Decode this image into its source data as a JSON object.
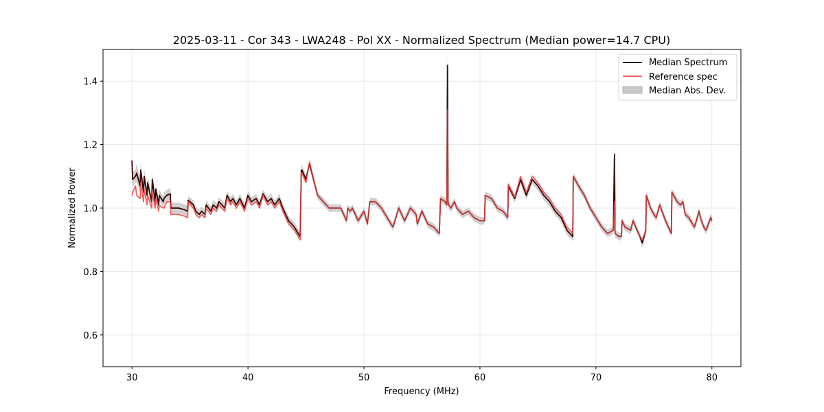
{
  "chart_data": {
    "type": "line",
    "title": "2025-03-11 - Cor 343 - LWA248 - Pol XX - Normalized Spectrum (Median power=14.7 CPU)",
    "xlabel": "Frequency (MHz)",
    "ylabel": "Normalized Power",
    "xlim": [
      27.5,
      82.5
    ],
    "ylim": [
      0.5,
      1.5
    ],
    "xticks": [
      30,
      40,
      50,
      60,
      70,
      80
    ],
    "yticks": [
      0.6,
      0.8,
      1.0,
      1.2,
      1.4
    ],
    "xtick_labels": [
      "30",
      "40",
      "50",
      "60",
      "70",
      "80"
    ],
    "ytick_labels": [
      "0.6",
      "0.8",
      "1.0",
      "1.2",
      "1.4"
    ],
    "grid": true,
    "legend_position": "top-right",
    "colors": {
      "median": "#000000",
      "reference": "#f06060",
      "mad": "#c8c8c8",
      "overlap": "#8b0000"
    },
    "legend": [
      {
        "label": "Median Spectrum",
        "kind": "line",
        "color": "#000000"
      },
      {
        "label": "Reference spec",
        "kind": "line",
        "color": "#f06060"
      },
      {
        "label": "Median Abs. Dev.",
        "kind": "patch",
        "color": "#c8c8c8"
      }
    ],
    "series": [
      {
        "name": "Median Spectrum",
        "x": [
          30.0,
          30.05,
          30.3,
          30.4,
          30.7,
          30.75,
          31.0,
          31.05,
          31.3,
          31.35,
          31.7,
          31.75,
          32.0,
          32.05,
          32.3,
          32.35,
          32.7,
          32.75,
          33.0,
          33.3,
          33.35,
          34.0,
          34.5,
          34.8,
          34.85,
          35.3,
          35.5,
          35.8,
          36.0,
          36.3,
          36.4,
          36.8,
          37.0,
          37.3,
          37.5,
          38.0,
          38.2,
          38.5,
          38.7,
          39.0,
          39.3,
          39.7,
          40.0,
          40.3,
          40.7,
          41.0,
          41.3,
          41.7,
          42.0,
          42.3,
          42.7,
          43.0,
          43.5,
          44.0,
          44.5,
          44.6,
          44.65,
          45.0,
          45.3,
          46.0,
          46.5,
          47.0,
          47.5,
          48.0,
          48.5,
          48.6,
          48.8,
          49.0,
          49.5,
          50.0,
          50.3,
          50.5,
          51.0,
          51.5,
          52.0,
          52.5,
          53.0,
          53.5,
          54.0,
          54.5,
          54.6,
          55.0,
          55.5,
          56.0,
          56.5,
          56.6,
          57.0,
          57.15,
          57.2,
          57.25,
          57.3,
          57.5,
          57.8,
          58.0,
          58.5,
          59.0,
          59.5,
          60.0,
          60.4,
          60.45,
          61.0,
          61.5,
          62.0,
          62.4,
          62.45,
          63.0,
          63.5,
          64.0,
          64.5,
          65.0,
          65.5,
          66.0,
          66.5,
          67.0,
          67.5,
          68.0,
          68.05,
          68.5,
          69.0,
          69.5,
          70.0,
          70.5,
          71.0,
          71.5,
          71.6,
          71.65,
          72.0,
          72.2,
          72.25,
          72.5,
          73.0,
          73.2,
          73.8,
          74.0,
          74.3,
          74.35,
          74.7,
          75.0,
          75.2,
          75.5,
          76.0,
          76.5,
          76.55,
          77.0,
          77.3,
          77.5,
          77.7,
          78.0,
          78.5,
          78.9,
          79.0,
          79.3,
          79.5,
          79.9,
          80.0
        ],
        "values": [
          1.15,
          1.09,
          1.1,
          1.11,
          1.07,
          1.12,
          1.05,
          1.1,
          1.04,
          1.08,
          1.02,
          1.09,
          1.02,
          1.06,
          1.01,
          1.04,
          1.02,
          1.03,
          1.04,
          1.045,
          1.0,
          1.0,
          0.995,
          0.99,
          1.025,
          1.01,
          0.99,
          0.98,
          0.99,
          0.98,
          1.01,
          0.99,
          1.01,
          1.0,
          1.02,
          1.0,
          1.04,
          1.02,
          1.03,
          1.01,
          1.03,
          1.0,
          1.04,
          1.02,
          1.03,
          1.01,
          1.045,
          1.02,
          1.03,
          1.01,
          1.03,
          1.0,
          0.96,
          0.94,
          0.91,
          1.12,
          1.12,
          1.09,
          1.14,
          1.04,
          1.02,
          1.0,
          1.0,
          1.0,
          0.96,
          1.0,
          0.99,
          1.0,
          0.96,
          0.99,
          0.95,
          1.02,
          1.02,
          1.0,
          0.97,
          0.94,
          1.0,
          0.96,
          1.0,
          0.98,
          0.95,
          0.99,
          0.95,
          0.94,
          0.92,
          1.03,
          1.02,
          1.01,
          1.45,
          1.02,
          1.01,
          1.0,
          1.02,
          1.0,
          0.98,
          0.99,
          0.97,
          0.96,
          0.96,
          1.04,
          1.03,
          1.0,
          0.99,
          0.97,
          1.07,
          1.03,
          1.09,
          1.04,
          1.09,
          1.07,
          1.04,
          1.02,
          0.99,
          0.97,
          0.93,
          0.91,
          1.1,
          1.07,
          1.04,
          1.0,
          0.97,
          0.94,
          0.92,
          0.93,
          1.17,
          0.92,
          0.91,
          0.91,
          0.96,
          0.94,
          0.93,
          0.96,
          0.91,
          0.89,
          0.93,
          1.04,
          1.0,
          0.98,
          0.97,
          1.01,
          0.96,
          0.92,
          1.05,
          1.02,
          1.01,
          1.02,
          0.98,
          0.97,
          0.94,
          0.99,
          0.97,
          0.94,
          0.93,
          0.97,
          0.96
        ]
      },
      {
        "name": "Reference spec",
        "x": [
          30.0,
          30.05,
          30.3,
          30.4,
          30.7,
          30.75,
          31.0,
          31.05,
          31.3,
          31.35,
          31.7,
          31.75,
          32.0,
          32.05,
          32.3,
          32.35,
          32.7,
          32.75,
          33.0,
          33.3,
          33.35,
          34.0,
          34.5,
          34.8,
          34.85,
          35.3,
          35.5,
          35.8,
          36.0,
          36.3,
          36.4,
          36.8,
          37.0,
          37.3,
          37.5,
          38.0,
          38.2,
          38.5,
          38.7,
          39.0,
          39.3,
          39.7,
          40.0,
          40.3,
          40.7,
          41.0,
          41.3,
          41.7,
          42.0,
          42.3,
          42.7,
          43.0,
          43.5,
          44.0,
          44.5,
          44.6,
          44.65,
          45.0,
          45.3,
          46.0,
          46.5,
          47.0,
          47.5,
          48.0,
          48.5,
          48.6,
          48.8,
          49.0,
          49.5,
          50.0,
          50.3,
          50.5,
          51.0,
          51.5,
          52.0,
          52.5,
          53.0,
          53.5,
          54.0,
          54.5,
          54.6,
          55.0,
          55.5,
          56.0,
          56.5,
          56.6,
          57.0,
          57.15,
          57.2,
          57.25,
          57.3,
          57.5,
          57.8,
          58.0,
          58.5,
          59.0,
          59.5,
          60.0,
          60.4,
          60.45,
          61.0,
          61.5,
          62.0,
          62.4,
          62.45,
          63.0,
          63.5,
          64.0,
          64.5,
          65.0,
          65.5,
          66.0,
          66.5,
          67.0,
          67.5,
          68.0,
          68.05,
          68.5,
          69.0,
          69.5,
          70.0,
          70.5,
          71.0,
          71.5,
          71.6,
          71.65,
          72.0,
          72.2,
          72.25,
          72.5,
          73.0,
          73.2,
          73.8,
          74.0,
          74.3,
          74.35,
          74.7,
          75.0,
          75.2,
          75.5,
          76.0,
          76.5,
          76.55,
          77.0,
          77.3,
          77.5,
          77.7,
          78.0,
          78.5,
          78.9,
          79.0,
          79.3,
          79.5,
          79.9,
          80.0
        ],
        "values": [
          1.04,
          1.05,
          1.07,
          1.04,
          1.03,
          1.08,
          1.02,
          1.06,
          1.01,
          1.04,
          1.0,
          1.05,
          1.0,
          1.03,
          0.99,
          1.01,
          1.0,
          1.0,
          1.02,
          1.02,
          0.98,
          0.98,
          0.975,
          0.97,
          1.02,
          1.0,
          0.98,
          0.97,
          0.98,
          0.97,
          1.0,
          0.98,
          1.0,
          0.99,
          1.01,
          0.99,
          1.03,
          1.01,
          1.02,
          1.0,
          1.02,
          0.99,
          1.03,
          1.01,
          1.02,
          1.0,
          1.04,
          1.01,
          1.02,
          1.0,
          1.02,
          0.99,
          0.95,
          0.93,
          0.9,
          1.11,
          1.11,
          1.08,
          1.145,
          1.04,
          1.02,
          1.0,
          1.0,
          1.0,
          0.96,
          1.0,
          0.99,
          1.0,
          0.96,
          0.99,
          0.95,
          1.02,
          1.02,
          1.0,
          0.97,
          0.94,
          1.0,
          0.96,
          1.0,
          0.98,
          0.95,
          0.99,
          0.95,
          0.94,
          0.92,
          1.03,
          1.02,
          1.01,
          1.31,
          1.02,
          1.01,
          1.0,
          1.02,
          1.0,
          0.98,
          0.99,
          0.97,
          0.96,
          0.96,
          1.04,
          1.03,
          1.0,
          0.99,
          0.97,
          1.075,
          1.035,
          1.1,
          1.05,
          1.1,
          1.08,
          1.05,
          1.03,
          1.0,
          0.98,
          0.94,
          0.92,
          1.1,
          1.07,
          1.04,
          1.0,
          0.97,
          0.94,
          0.92,
          0.93,
          1.02,
          0.92,
          0.91,
          0.91,
          0.96,
          0.94,
          0.93,
          0.96,
          0.91,
          0.9,
          0.93,
          1.04,
          1.0,
          0.98,
          0.97,
          1.01,
          0.96,
          0.92,
          1.05,
          1.02,
          1.01,
          1.02,
          0.98,
          0.97,
          0.94,
          0.99,
          0.97,
          0.94,
          0.93,
          0.97,
          0.96
        ]
      }
    ]
  }
}
